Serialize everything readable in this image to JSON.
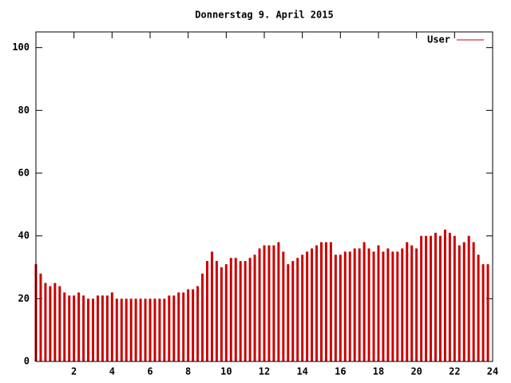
{
  "chart_data": {
    "type": "impulse",
    "title": "Donnerstag 9. April 2015",
    "x": [
      0,
      0.25,
      0.5,
      0.75,
      1,
      1.25,
      1.5,
      1.75,
      2,
      2.25,
      2.5,
      2.75,
      3,
      3.25,
      3.5,
      3.75,
      4,
      4.25,
      4.5,
      4.75,
      5,
      5.25,
      5.5,
      5.75,
      6,
      6.25,
      6.5,
      6.75,
      7,
      7.25,
      7.5,
      7.75,
      8,
      8.25,
      8.5,
      8.75,
      9,
      9.25,
      9.5,
      9.75,
      10,
      10.25,
      10.5,
      10.75,
      11,
      11.25,
      11.5,
      11.75,
      12,
      12.25,
      12.5,
      12.75,
      13,
      13.25,
      13.5,
      13.75,
      14,
      14.25,
      14.5,
      14.75,
      15,
      15.25,
      15.5,
      15.75,
      16,
      16.25,
      16.5,
      16.75,
      17,
      17.25,
      17.5,
      17.75,
      18,
      18.25,
      18.5,
      18.75,
      19,
      19.25,
      19.5,
      19.75,
      20,
      20.25,
      20.5,
      20.75,
      21,
      21.25,
      21.5,
      21.75,
      22,
      22.25,
      22.5,
      22.75,
      23,
      23.25,
      23.5,
      23.75
    ],
    "series": [
      {
        "name": "User",
        "color": "#cc0000",
        "values": [
          31,
          28,
          25,
          24,
          25,
          24,
          22,
          21,
          21,
          22,
          21,
          20,
          20,
          21,
          21,
          21,
          22,
          20,
          20,
          20,
          20,
          20,
          20,
          20,
          20,
          20,
          20,
          20,
          21,
          21,
          22,
          22,
          23,
          23,
          24,
          28,
          32,
          35,
          32,
          30,
          31,
          33,
          33,
          32,
          32,
          33,
          34,
          36,
          37,
          37,
          37,
          38,
          35,
          31,
          32,
          33,
          34,
          35,
          36,
          37,
          38,
          38,
          38,
          34,
          34,
          35,
          35,
          36,
          36,
          38,
          36,
          35,
          37,
          35,
          36,
          35,
          35,
          36,
          38,
          37,
          36,
          40,
          40,
          40,
          41,
          40,
          42,
          41,
          40,
          37,
          38,
          40,
          38,
          34,
          31,
          31
        ]
      }
    ],
    "xlim": [
      0,
      24
    ],
    "xticks": [
      2,
      4,
      6,
      8,
      10,
      12,
      14,
      16,
      18,
      20,
      22,
      24
    ],
    "ylim": [
      0,
      105
    ],
    "yticks": [
      0,
      20,
      40,
      60,
      80,
      100
    ],
    "legend": "top-right"
  }
}
